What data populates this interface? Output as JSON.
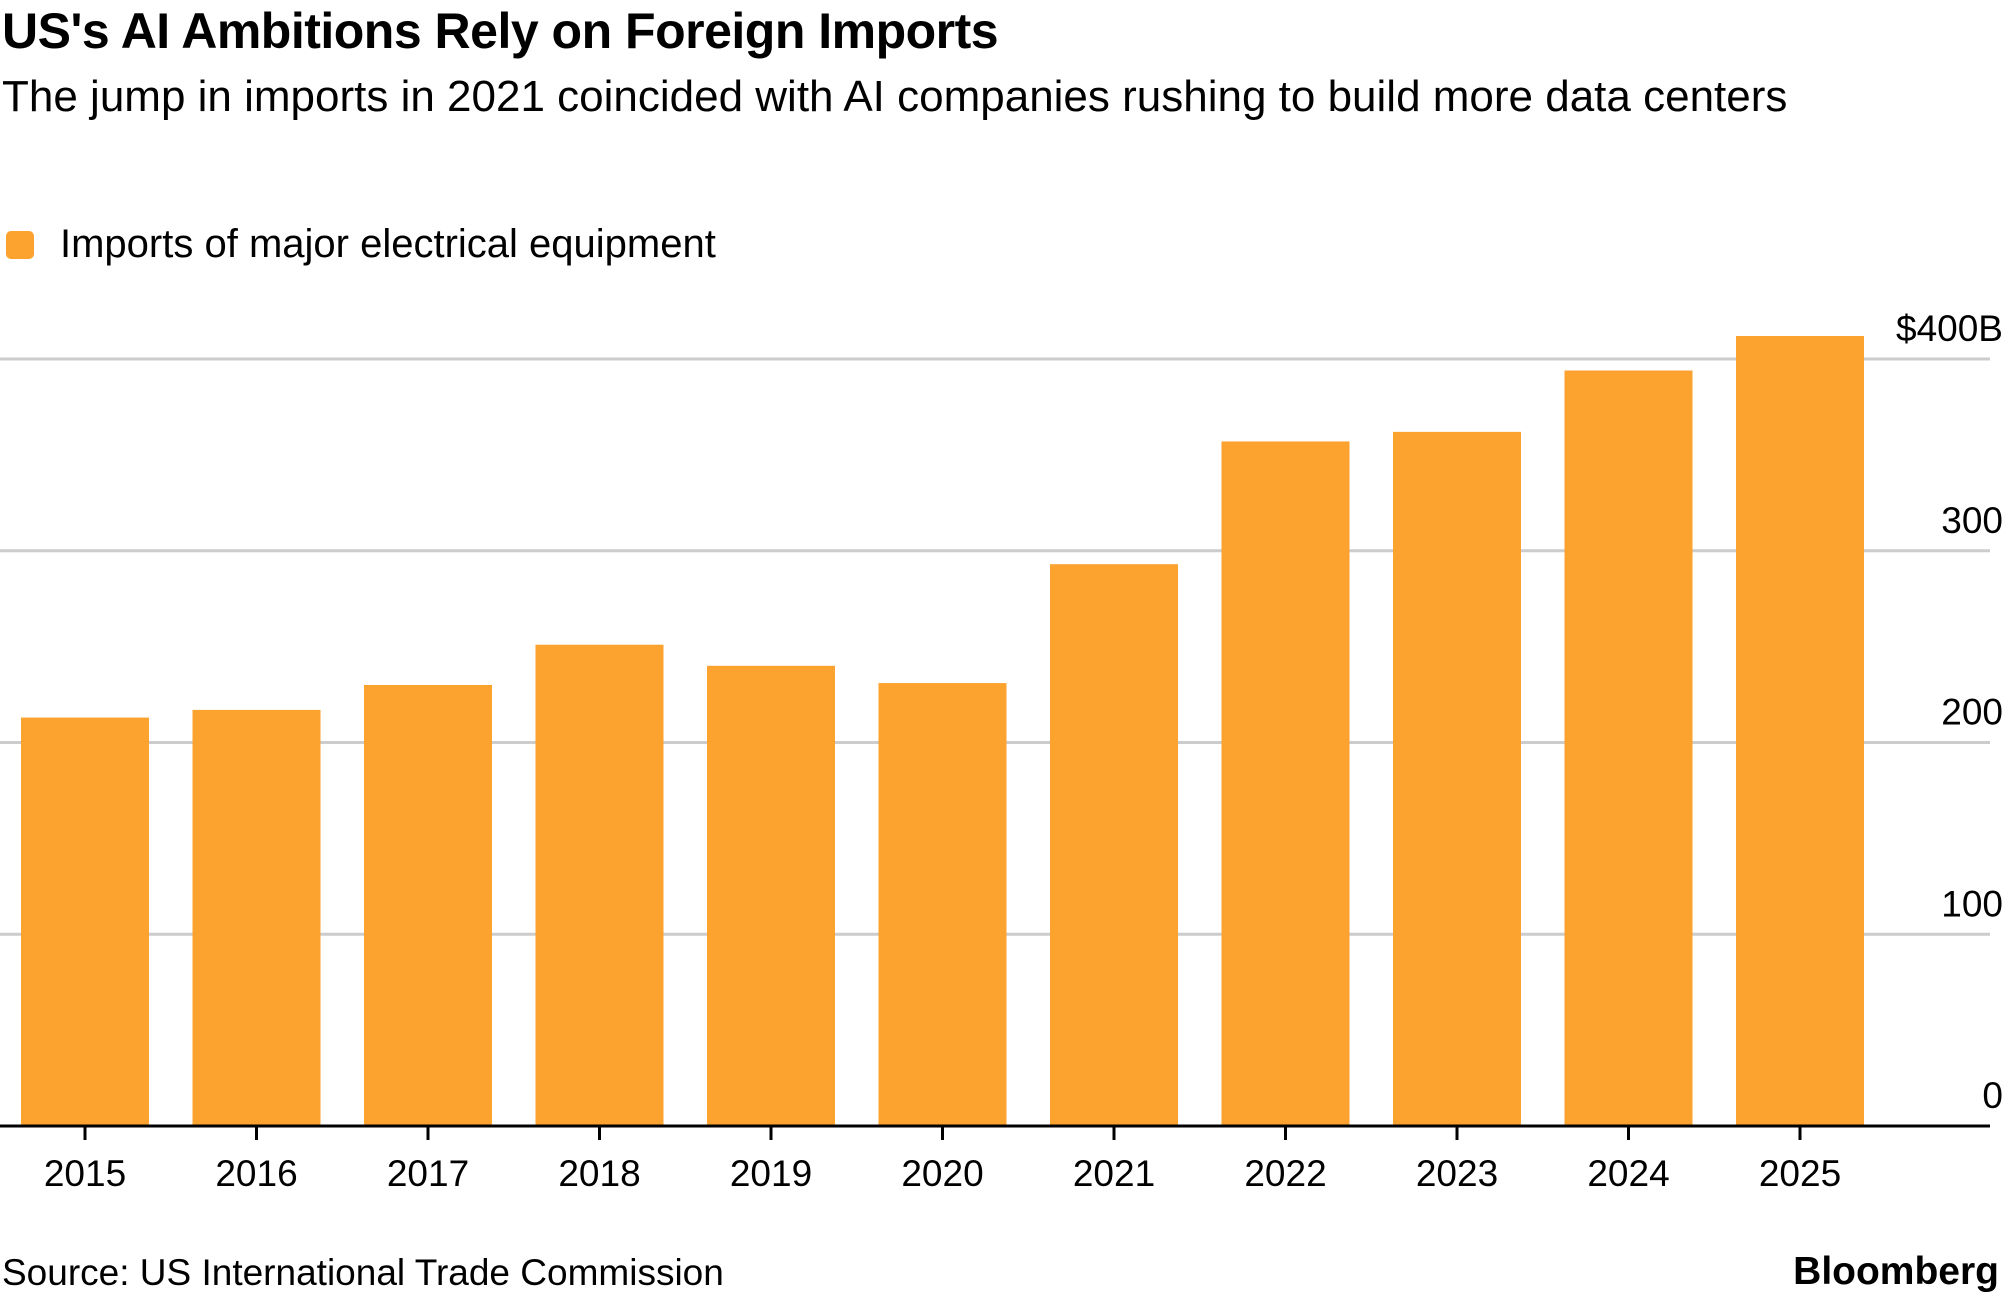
{
  "title": "US's AI Ambitions Rely on Foreign Imports",
  "subtitle": "The jump in imports in 2021 coincided with AI companies rushing to build more data centers",
  "source": "Source: US International Trade Commission",
  "brand": "Bloomberg",
  "colors": {
    "bar": "#FCA22E",
    "grid": "#cccccc",
    "axis": "#000000",
    "text": "#000000"
  },
  "chart_data": {
    "type": "bar",
    "title": "US's AI Ambitions Rely on Foreign Imports",
    "categories": [
      "2015",
      "2016",
      "2017",
      "2018",
      "2019",
      "2020",
      "2021",
      "2022",
      "2023",
      "2024",
      "2025"
    ],
    "series": [
      {
        "name": "Imports of major electrical equipment",
        "values": [
          213,
          217,
          230,
          251,
          240,
          231,
          293,
          357,
          362,
          394,
          412
        ]
      }
    ],
    "ylim": [
      0,
      400
    ],
    "yticks": [
      0,
      100,
      200,
      300,
      400
    ],
    "ytick_labels": [
      "0",
      "100",
      "200",
      "300",
      "$400B"
    ],
    "xlabel": "",
    "ylabel": "",
    "grid": true,
    "legend_position": "top-left",
    "y_axis_side": "right"
  }
}
